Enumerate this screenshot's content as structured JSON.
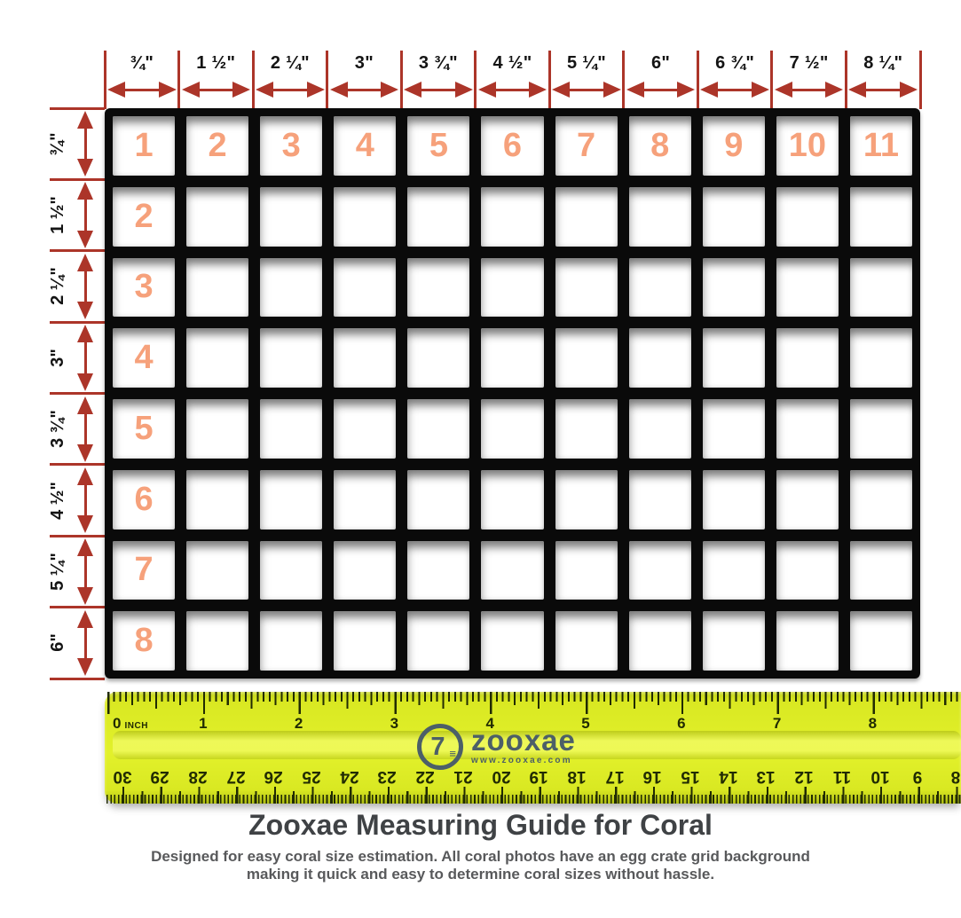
{
  "dimensions": {
    "top_labels": [
      "¾\"",
      "1 ½\"",
      "2 ¼\"",
      "3\"",
      "3 ¾\"",
      "4 ½\"",
      "5 ¼\"",
      "6\"",
      "6 ¾\"",
      "7 ½\"",
      "8 ¼\""
    ],
    "left_labels": [
      "¾\"",
      "1 ½\"",
      "2 ¼\"",
      "3\"",
      "3 ¾\"",
      "4 ½\"",
      "5 ¼\"",
      "6\""
    ],
    "arrow_color": "#ac3529",
    "label_color": "#141414"
  },
  "grid": {
    "columns": 11,
    "rows": 8,
    "top_row_numbers": [
      "1",
      "2",
      "3",
      "4",
      "5",
      "6",
      "7",
      "8",
      "9",
      "10",
      "11"
    ],
    "left_column_numbers": [
      "2",
      "3",
      "4",
      "5",
      "6",
      "7",
      "8"
    ],
    "number_color": "#f6a17b",
    "frame_color": "#0a0a0a",
    "cell_color": "#ffffff"
  },
  "ruler": {
    "inch_numbers": [
      "0",
      "1",
      "2",
      "3",
      "4",
      "5",
      "6",
      "7",
      "8"
    ],
    "unit_label": "INCH",
    "cm_numbers": [
      "30",
      "29",
      "28",
      "27",
      "26",
      "25",
      "24",
      "23",
      "22",
      "21",
      "20",
      "19",
      "18",
      "17",
      "16",
      "15",
      "14",
      "13",
      "12",
      "11",
      "10",
      "9",
      "8"
    ],
    "body_color": "#d9e822",
    "tick_color": "#212b03",
    "logo": {
      "brand": "zooxae",
      "website": "www.zooxae.com",
      "color": "#4c5f68",
      "monogram": "7",
      "monogram_lines": "≡"
    }
  },
  "footer": {
    "title": "Zooxae Measuring Guide for Coral",
    "subtitle_line1": "Designed for easy coral size estimation. All coral photos have an egg crate grid background",
    "subtitle_line2": "making it quick and easy to determine coral sizes without hassle.",
    "title_color": "#3f4245",
    "subtitle_color": "#58595b"
  }
}
